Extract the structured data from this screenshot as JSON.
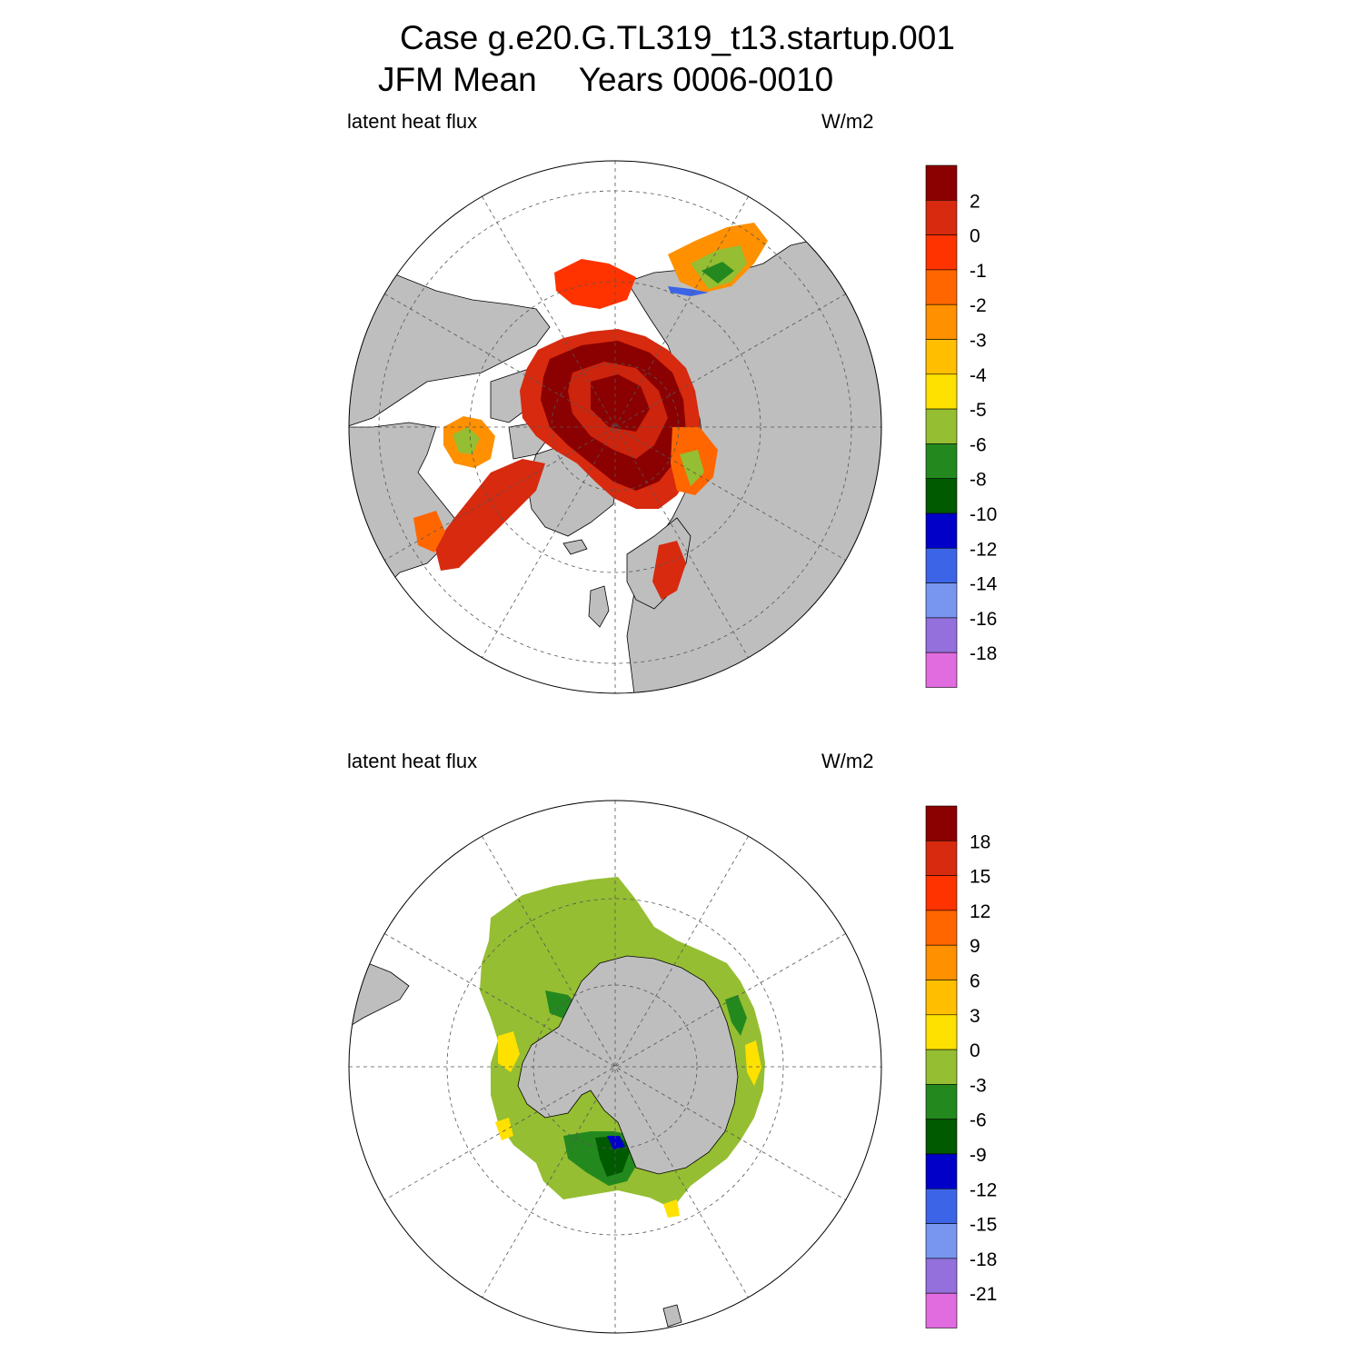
{
  "header": {
    "case_line": "Case g.e20.G.TL319_t13.startup.001",
    "season": "JFM Mean",
    "years": "Years 0006-0010"
  },
  "colors": {
    "land": "#bebebe",
    "grid": "#555555",
    "outline": "#000000"
  },
  "panels": [
    {
      "hemisphere": "north",
      "variable": "latent heat flux",
      "units": "W/m2",
      "colorbar": {
        "labels": [
          "2",
          "0",
          "-1",
          "-2",
          "-3",
          "-4",
          "-5",
          "-6",
          "-8",
          "-10",
          "-12",
          "-14",
          "-16",
          "-18"
        ],
        "colors": [
          "#8b0000",
          "#d72a0f",
          "#ff3300",
          "#ff6600",
          "#ff9000",
          "#ffbf00",
          "#ffe100",
          "#95be32",
          "#23891e",
          "#005a00",
          "#0000c8",
          "#3c64e6",
          "#7896f0",
          "#9370db",
          "#e06ce0"
        ]
      }
    },
    {
      "hemisphere": "south",
      "variable": "latent heat flux",
      "units": "W/m2",
      "colorbar": {
        "labels": [
          "18",
          "15",
          "12",
          "9",
          "6",
          "3",
          "0",
          "-3",
          "-6",
          "-9",
          "-12",
          "-15",
          "-18",
          "-21"
        ],
        "colors": [
          "#8b0000",
          "#d72a0f",
          "#ff3300",
          "#ff6600",
          "#ff9000",
          "#ffbf00",
          "#ffe100",
          "#95be32",
          "#23891e",
          "#005a00",
          "#0000c8",
          "#3c64e6",
          "#7896f0",
          "#9370db",
          "#e06ce0"
        ]
      }
    }
  ]
}
